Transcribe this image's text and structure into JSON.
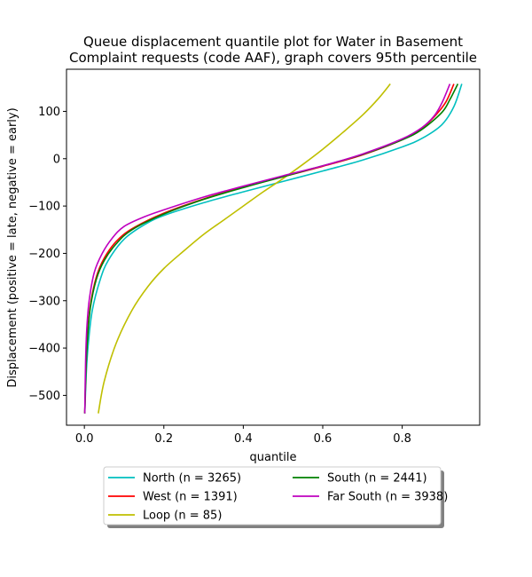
{
  "chart_data": {
    "type": "line",
    "title": "Queue displacement quantile plot for Water in Basement\nComplaint  requests (code AAF), graph covers 95th percentile",
    "xlabel": "quantile",
    "ylabel": "Displacement (positive = late, negative = early)",
    "xlim": [
      -0.045,
      0.995
    ],
    "ylim": [
      -563,
      189
    ],
    "xticks": [
      0.0,
      0.2,
      0.4,
      0.6,
      0.8
    ],
    "xtick_labels": [
      "0.0",
      "0.2",
      "0.4",
      "0.6",
      "0.8"
    ],
    "yticks": [
      100,
      0,
      -100,
      -200,
      -300,
      -400,
      -500
    ],
    "ytick_labels": [
      "100",
      "0",
      "−100",
      "−200",
      "−300",
      "−400",
      "−500"
    ],
    "grid": false,
    "legend_position": "below plot, center, 2 columns",
    "series": [
      {
        "name": "North (n = 3265)",
        "color": "#00bfbf",
        "x": [
          0.001,
          0.005,
          0.01,
          0.02,
          0.04,
          0.06,
          0.1,
          0.15,
          0.2,
          0.3,
          0.4,
          0.5,
          0.6,
          0.7,
          0.8,
          0.85,
          0.9,
          0.93,
          0.95
        ],
        "y": [
          -538,
          -450,
          -390,
          -320,
          -255,
          -215,
          -170,
          -140,
          -120,
          -93,
          -70,
          -48,
          -26,
          -3,
          25,
          43,
          72,
          110,
          158
        ]
      },
      {
        "name": "West (n = 1391)",
        "color": "#ff0000",
        "x": [
          0.001,
          0.004,
          0.008,
          0.015,
          0.03,
          0.05,
          0.08,
          0.12,
          0.2,
          0.3,
          0.4,
          0.5,
          0.6,
          0.7,
          0.8,
          0.85,
          0.88,
          0.91,
          0.93
        ],
        "y": [
          -538,
          -440,
          -370,
          -310,
          -250,
          -210,
          -175,
          -148,
          -115,
          -85,
          -60,
          -38,
          -16,
          8,
          40,
          65,
          88,
          120,
          158
        ]
      },
      {
        "name": "Loop (n = 85)",
        "color": "#bfbf00",
        "x": [
          0.035,
          0.05,
          0.08,
          0.12,
          0.16,
          0.2,
          0.25,
          0.3,
          0.35,
          0.4,
          0.45,
          0.5,
          0.55,
          0.6,
          0.65,
          0.7,
          0.74,
          0.77
        ],
        "y": [
          -538,
          -470,
          -390,
          -320,
          -270,
          -232,
          -195,
          -160,
          -130,
          -100,
          -70,
          -42,
          -12,
          20,
          55,
          92,
          127,
          158
        ]
      },
      {
        "name": "South (n = 2441)",
        "color": "#008000",
        "x": [
          0.001,
          0.004,
          0.008,
          0.015,
          0.03,
          0.05,
          0.08,
          0.12,
          0.2,
          0.3,
          0.4,
          0.5,
          0.6,
          0.7,
          0.8,
          0.85,
          0.9,
          0.92,
          0.94
        ],
        "y": [
          -538,
          -445,
          -380,
          -315,
          -255,
          -215,
          -180,
          -150,
          -117,
          -86,
          -61,
          -38,
          -15,
          9,
          40,
          62,
          98,
          125,
          158
        ]
      },
      {
        "name": "Far South (n = 3938)",
        "color": "#bf00bf",
        "x": [
          0.001,
          0.003,
          0.006,
          0.012,
          0.025,
          0.045,
          0.07,
          0.1,
          0.15,
          0.2,
          0.3,
          0.4,
          0.5,
          0.6,
          0.7,
          0.8,
          0.85,
          0.88,
          0.9,
          0.92
        ],
        "y": [
          -538,
          -430,
          -360,
          -300,
          -240,
          -200,
          -168,
          -143,
          -123,
          -108,
          -81,
          -58,
          -36,
          -15,
          10,
          42,
          66,
          90,
          118,
          158
        ]
      }
    ]
  }
}
